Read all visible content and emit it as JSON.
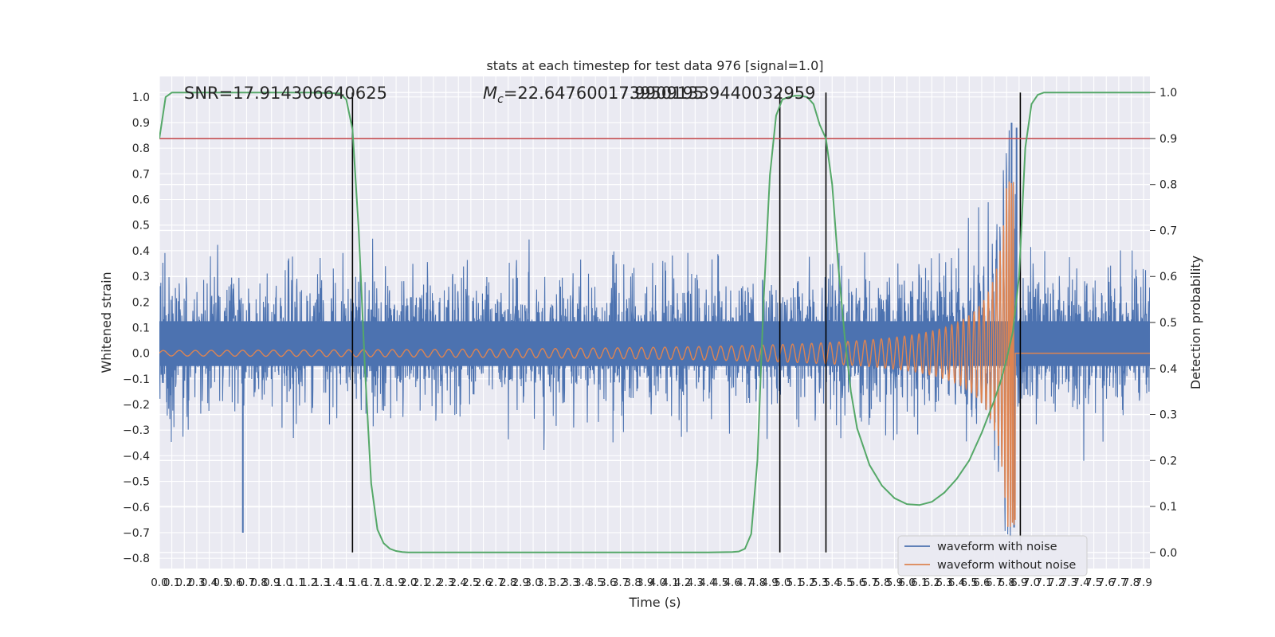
{
  "chart_data": {
    "type": "line",
    "title": "stats at each timestep for test data 976 [signal=1.0]",
    "xlabel": "Time (s)",
    "ylabel": "Whitened strain",
    "ylabel_right": "Detection probability",
    "xlim": [
      0.0,
      7.95
    ],
    "ylim": [
      -0.84,
      1.08
    ],
    "ylim_right": [
      -0.035,
      1.035
    ],
    "x_ticks": [
      0.0,
      0.1,
      0.2,
      0.3,
      0.4,
      0.5,
      0.6,
      0.7,
      0.8,
      0.9,
      1.0,
      1.1,
      1.2,
      1.3,
      1.4,
      1.5,
      1.6,
      1.7,
      1.8,
      1.9,
      2.0,
      2.1,
      2.2,
      2.3,
      2.4,
      2.5,
      2.6,
      2.7,
      2.8,
      2.9,
      3.0,
      3.1,
      3.2,
      3.3,
      3.4,
      3.5,
      3.6,
      3.7,
      3.8,
      3.9,
      4.0,
      4.1,
      4.2,
      4.3,
      4.4,
      4.5,
      4.6,
      4.7,
      4.8,
      4.9,
      5.0,
      5.1,
      5.2,
      5.3,
      5.4,
      5.5,
      5.6,
      5.7,
      5.8,
      5.9,
      6.0,
      6.1,
      6.2,
      6.3,
      6.4,
      6.5,
      6.6,
      6.7,
      6.8,
      6.9,
      7.0,
      7.1,
      7.2,
      7.3,
      7.4,
      7.5,
      7.6,
      7.7,
      7.8,
      7.9
    ],
    "x_tick_labels": [
      "0.0",
      "0.1",
      "0.2",
      "0.3",
      "0.4",
      "0.5",
      "0.6",
      "0.7",
      "0.8",
      "0.9",
      "1.0",
      "1.1",
      "1.2",
      "1.3",
      "1.4",
      "1.5",
      "1.6",
      "1.7",
      "1.8",
      "1.9",
      "2.0",
      "2.1",
      "2.2",
      "2.3",
      "2.4",
      "2.5",
      "2.6",
      "2.7",
      "2.8",
      "2.9",
      "3.0",
      "3.1",
      "3.2",
      "3.3",
      "3.4",
      "3.5",
      "3.6",
      "3.7",
      "3.8",
      "3.9",
      "4.0",
      "4.1",
      "4.2",
      "4.3",
      "4.4",
      "4.5",
      "4.6",
      "4.7",
      "4.8",
      "4.9",
      "5.0",
      "5.1",
      "5.2",
      "5.3",
      "5.4",
      "5.5",
      "5.6",
      "5.7",
      "5.8",
      "5.9",
      "6.0",
      "6.1",
      "6.2",
      "6.3",
      "6.4",
      "6.5",
      "6.6",
      "6.7",
      "6.8",
      "6.9",
      "7.0",
      "7.1",
      "7.2",
      "7.3",
      "7.4",
      "7.5",
      "7.6",
      "7.7",
      "7.8",
      "7.9"
    ],
    "y_ticks": [
      1.0,
      0.9,
      0.8,
      0.7,
      0.6,
      0.5,
      0.4,
      0.3,
      0.2,
      0.1,
      0.0,
      -0.1,
      -0.2,
      -0.3,
      -0.4,
      -0.5,
      -0.6,
      -0.7,
      -0.8
    ],
    "y_tick_labels": [
      "1.0",
      "0.9",
      "0.8",
      "0.7",
      "0.6",
      "0.5",
      "0.4",
      "0.3",
      "0.2",
      "0.1",
      "0.0",
      "−0.1",
      "−0.2",
      "−0.3",
      "−0.4",
      "−0.5",
      "−0.6",
      "−0.7",
      "−0.8"
    ],
    "y_ticks_right": [
      1.0,
      0.9,
      0.8,
      0.7,
      0.6,
      0.5,
      0.4,
      0.3,
      0.2,
      0.1,
      0.0
    ],
    "y_tick_labels_right": [
      "1.0",
      "0.9",
      "0.8",
      "0.7",
      "0.6",
      "0.5",
      "0.4",
      "0.3",
      "0.2",
      "0.1",
      "0.0"
    ],
    "grid": true,
    "legend_placement": "lower-right",
    "annotations": {
      "snr": "SNR=17.914306640625",
      "mc_prefix": "M",
      "mc_sub": "c",
      "mc_value": "=22.647600173950195",
      "mc_overlap": "17.99091339440032959"
    },
    "threshold": 0.9,
    "detection_bounds_x": [
      1.55,
      4.98,
      5.35,
      6.91
    ],
    "series": [
      {
        "name": "waveform with noise",
        "color": "#4c72b0",
        "kind": "noise",
        "core_amplitude": [
          -0.05,
          0.125
        ],
        "typical_peak": 0.32,
        "max_peaks": [
          [
            0.67,
            -0.7
          ],
          [
            6.84,
            0.9
          ],
          [
            6.88,
            0.88
          ],
          [
            6.86,
            -0.68
          ]
        ]
      },
      {
        "name": "waveform without noise",
        "color": "#dd8452",
        "kind": "chirp",
        "merger_time": 6.87,
        "peak_amplitude": 0.68,
        "min_amplitude": -0.72,
        "early_amplitude": 0.012
      },
      {
        "name": "",
        "color": "#55a868",
        "kind": "probability",
        "axis": "right",
        "x": [
          0.0,
          0.05,
          0.1,
          0.2,
          0.4,
          0.8,
          1.2,
          1.45,
          1.5,
          1.55,
          1.6,
          1.65,
          1.7,
          1.75,
          1.8,
          1.85,
          1.9,
          1.95,
          2.0,
          2.1,
          2.3,
          2.6,
          3.0,
          3.5,
          4.0,
          4.4,
          4.6,
          4.65,
          4.7,
          4.75,
          4.8,
          4.85,
          4.9,
          4.95,
          5.0,
          5.05,
          5.1,
          5.15,
          5.2,
          5.25,
          5.3,
          5.35,
          5.4,
          5.45,
          5.5,
          5.55,
          5.6,
          5.7,
          5.8,
          5.9,
          6.0,
          6.1,
          6.2,
          6.3,
          6.4,
          6.5,
          6.6,
          6.7,
          6.75,
          6.8,
          6.85,
          6.9,
          6.95,
          7.0,
          7.05,
          7.1,
          7.2,
          7.5,
          7.95
        ],
        "y": [
          0.9,
          0.99,
          1.0,
          1.0,
          1.0,
          1.0,
          1.0,
          0.998,
          0.985,
          0.92,
          0.7,
          0.4,
          0.15,
          0.05,
          0.02,
          0.008,
          0.003,
          0.001,
          0.0,
          0.0,
          0.0,
          0.0,
          0.0,
          0.0,
          0.0,
          0.0,
          0.001,
          0.002,
          0.008,
          0.04,
          0.2,
          0.55,
          0.82,
          0.95,
          0.985,
          0.99,
          0.993,
          0.993,
          0.99,
          0.975,
          0.93,
          0.9,
          0.8,
          0.62,
          0.47,
          0.35,
          0.27,
          0.19,
          0.145,
          0.118,
          0.105,
          0.103,
          0.11,
          0.13,
          0.16,
          0.2,
          0.26,
          0.33,
          0.37,
          0.42,
          0.48,
          0.6,
          0.88,
          0.975,
          0.995,
          1.0,
          1.0,
          1.0,
          1.0
        ]
      },
      {
        "name": "",
        "color": "#c44e52",
        "kind": "threshold",
        "axis": "right",
        "y": 0.9
      }
    ]
  },
  "legend": {
    "items": [
      {
        "label": "waveform with noise",
        "color": "#4c72b0"
      },
      {
        "label": "waveform without noise",
        "color": "#dd8452"
      }
    ]
  }
}
